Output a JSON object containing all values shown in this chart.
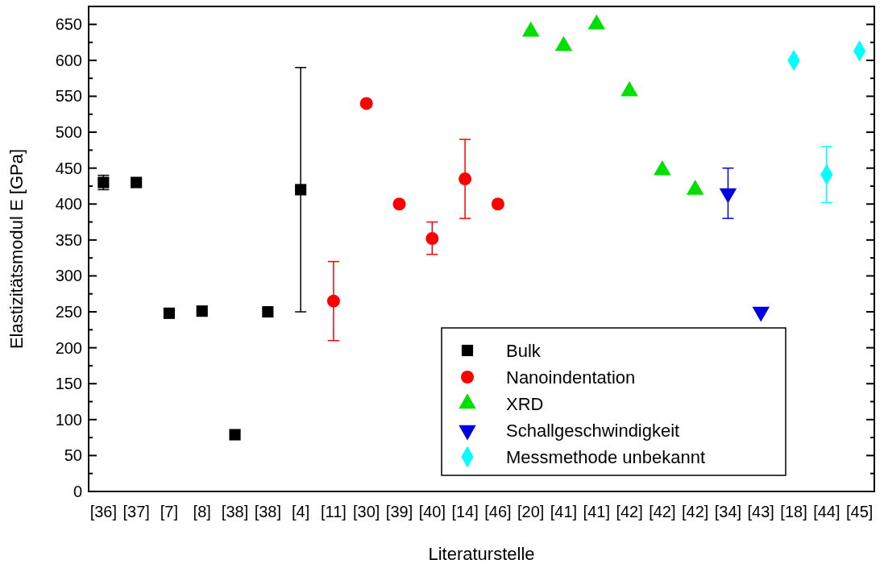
{
  "chart_data": {
    "type": "scatter",
    "xlabel": "Literaturstelle",
    "ylabel": "Elastizitätsmodul E [GPa]",
    "categories": [
      "[36]",
      "[37]",
      "[7]",
      "[8]",
      "[38]",
      "[38]",
      "[4]",
      "[11]",
      "[30]",
      "[39]",
      "[40]",
      "[14]",
      "[46]",
      "[20]",
      "[41]",
      "[41]",
      "[42]",
      "[42]",
      "[42]",
      "[34]",
      "[43]",
      "[18]",
      "[44]",
      "[45]"
    ],
    "ylim": [
      0,
      675
    ],
    "yticks": [
      0,
      {
        "value": 25,
        "label": null
      },
      50,
      {
        "value": 75,
        "label": null
      },
      100,
      {
        "value": 125,
        "label": null
      },
      150,
      {
        "value": 175,
        "label": null
      },
      200,
      {
        "value": 225,
        "label": null
      },
      250,
      {
        "value": 275,
        "label": null
      },
      300,
      {
        "value": 325,
        "label": null
      },
      350,
      {
        "value": 375,
        "label": null
      },
      400,
      {
        "value": 425,
        "label": null
      },
      450,
      {
        "value": 475,
        "label": null
      },
      500,
      {
        "value": 525,
        "label": null
      },
      550,
      {
        "value": 575,
        "label": null
      },
      600,
      {
        "value": 625,
        "label": null
      },
      650
    ],
    "legend": "bottom right",
    "grid": false,
    "series": [
      {
        "name": "Bulk",
        "color": "#000000",
        "marker": "square",
        "values": [
          430,
          430,
          248,
          251,
          79,
          250,
          420,
          null,
          null,
          null,
          null,
          null,
          null,
          null,
          null,
          null,
          null,
          null,
          null,
          null,
          null,
          null,
          null,
          null
        ],
        "errors": [
          [
            420,
            440
          ],
          null,
          null,
          null,
          null,
          null,
          [
            250,
            590
          ],
          null,
          null,
          null,
          null,
          null,
          null,
          null,
          null,
          null,
          null,
          null,
          null,
          null,
          null,
          null,
          null,
          null
        ]
      },
      {
        "name": "Nanoindentation",
        "color": "#ff0000",
        "marker": "circle",
        "values": [
          null,
          null,
          null,
          null,
          null,
          null,
          null,
          265,
          540,
          400,
          352,
          435,
          400,
          null,
          null,
          null,
          null,
          null,
          null,
          null,
          null,
          null,
          null,
          null
        ],
        "errors": [
          null,
          null,
          null,
          null,
          null,
          null,
          null,
          [
            210,
            320
          ],
          null,
          null,
          [
            330,
            375
          ],
          [
            380,
            490
          ],
          null,
          null,
          null,
          null,
          null,
          null,
          null,
          null,
          null,
          null,
          null,
          null
        ]
      },
      {
        "name": "XRD",
        "color": "#00e000",
        "marker": "triangle",
        "values": [
          null,
          null,
          null,
          null,
          null,
          null,
          null,
          null,
          null,
          null,
          null,
          null,
          null,
          640,
          620,
          650,
          557,
          447,
          420,
          null,
          null,
          null,
          null,
          null
        ]
      },
      {
        "name": "Schallgeschwindigkeit",
        "color": "#0000e0",
        "marker": "triangle-down",
        "values": [
          null,
          null,
          null,
          null,
          null,
          null,
          null,
          null,
          null,
          null,
          null,
          null,
          null,
          null,
          null,
          null,
          null,
          null,
          null,
          415,
          250,
          null,
          null,
          null
        ],
        "errors": [
          null,
          null,
          null,
          null,
          null,
          null,
          null,
          null,
          null,
          null,
          null,
          null,
          null,
          null,
          null,
          null,
          null,
          null,
          null,
          [
            380,
            450
          ],
          null,
          null,
          null,
          null
        ]
      },
      {
        "name": "Messmethode unbekannt",
        "color": "#00ffff",
        "marker": "diamond",
        "values": [
          null,
          null,
          null,
          null,
          null,
          null,
          null,
          null,
          null,
          null,
          null,
          null,
          null,
          null,
          null,
          null,
          null,
          null,
          null,
          null,
          null,
          600,
          441,
          613
        ],
        "errors": [
          null,
          null,
          null,
          null,
          null,
          null,
          null,
          null,
          null,
          null,
          null,
          null,
          null,
          null,
          null,
          null,
          null,
          null,
          null,
          null,
          null,
          null,
          [
            402,
            480
          ],
          null
        ]
      }
    ]
  }
}
